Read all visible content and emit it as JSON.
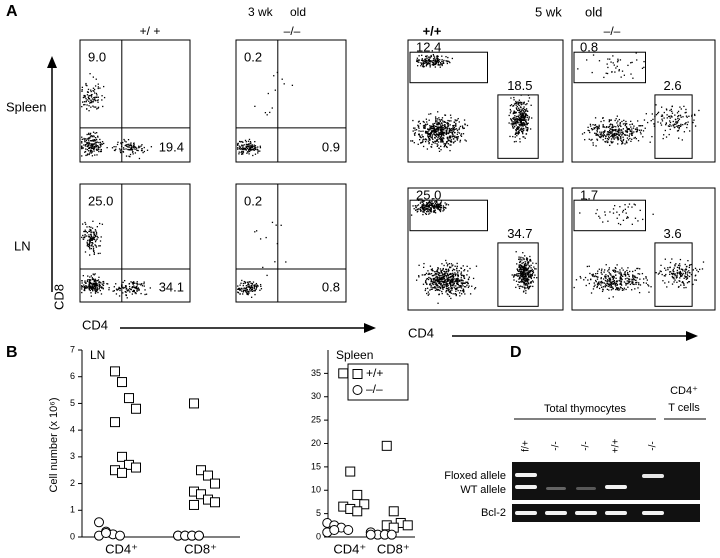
{
  "panel_a": {
    "label": "A",
    "groups": [
      {
        "age": "3 wk",
        "age_suffix": "old",
        "genotypes": [
          "+/ +",
          "–/–"
        ]
      },
      {
        "age": "5 wk",
        "age_suffix": "old",
        "genotypes": [
          "+/+",
          "–/–"
        ]
      }
    ],
    "rows": [
      "Spleen",
      "LN"
    ],
    "y_axis": "CD8",
    "x_axis": [
      "CD4",
      "CD4"
    ],
    "gates": [
      [
        [
          "9.0",
          "19.4"
        ],
        [
          "0.2",
          "0.9"
        ],
        [
          "12.4",
          "18.5"
        ],
        [
          "0.8",
          "2.6"
        ]
      ],
      [
        [
          "25.0",
          "34.1"
        ],
        [
          "0.2",
          "0.8"
        ],
        [
          "25.0",
          "34.7"
        ],
        [
          "1.7",
          "3.6"
        ]
      ]
    ]
  },
  "panel_b": {
    "label": "B"
  },
  "chart_data": [
    {
      "type": "scatter",
      "title": "LN",
      "y_label": "Cell number (x 10⁶)",
      "categories": [
        "CD4⁺",
        "CD8⁺"
      ],
      "ylim": [
        0,
        7
      ],
      "yticks": [
        0,
        1,
        2,
        3,
        4,
        5,
        6,
        7
      ],
      "series": [
        {
          "marker": "square",
          "color": "#000000",
          "values": [
            [
              6.2,
              5.8,
              5.2,
              4.8,
              4.3,
              3.0,
              2.7,
              2.6,
              2.5,
              2.4
            ],
            [
              5.0,
              2.5,
              2.3,
              2.0,
              1.7,
              1.6,
              1.4,
              1.3,
              1.2
            ]
          ]
        },
        {
          "marker": "circle",
          "color": "#000000",
          "values": [
            [
              0.55,
              0.2,
              0.1,
              0.05,
              0.05,
              0.15
            ],
            [
              0.05,
              0.05,
              0.05,
              0.05,
              0.05,
              0.05,
              0.05,
              0.05
            ]
          ]
        }
      ]
    },
    {
      "type": "scatter",
      "title": "Spleen",
      "categories": [
        "CD4⁺",
        "CD8⁺"
      ],
      "ylim": [
        0,
        40
      ],
      "yticks": [
        0,
        5,
        10,
        15,
        20,
        25,
        30,
        35
      ],
      "series": [
        {
          "name": "+/+",
          "marker": "square",
          "color": "#000000",
          "values": [
            [
              35,
              14,
              9,
              7,
              6.5,
              6,
              5.5
            ],
            [
              19.5,
              5.5,
              3,
              2.5,
              2.5,
              2
            ]
          ]
        },
        {
          "name": "–/–",
          "marker": "circle",
          "color": "#000000",
          "values": [
            [
              3,
              2.5,
              2,
              1.5,
              1,
              1.5
            ],
            [
              1,
              0.5,
              0.5,
              0.5,
              0.5
            ]
          ]
        }
      ]
    }
  ],
  "panel_d": {
    "label": "D",
    "group_labels": [
      "Total thymocytes",
      "CD4⁺",
      "T cells"
    ],
    "lanes": [
      "f/+",
      "-/-",
      "-/-",
      "+/+",
      "-/-"
    ],
    "bands": [
      "Floxed allele",
      "WT allele",
      "Bcl-2"
    ]
  }
}
